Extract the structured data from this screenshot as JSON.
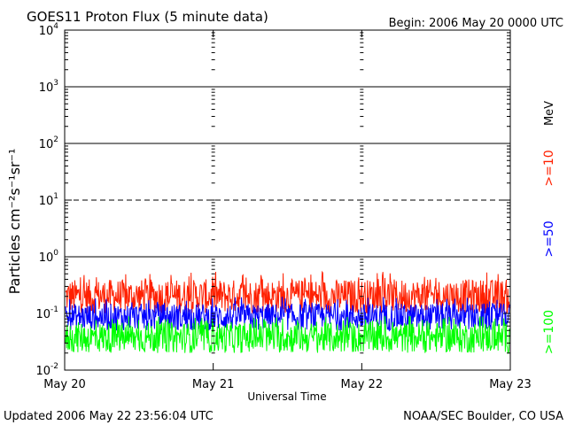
{
  "title": "GOES11 Proton Flux (5 minute data)",
  "begin": "Begin: 2006 May 20 0000 UTC",
  "updated": "Updated 2006 May 22 23:56:04 UTC",
  "credit": "NOAA/SEC Boulder, CO USA",
  "colors": {
    "ge10": "#ff2000",
    "ge50": "#0000ff",
    "ge100": "#00ff00",
    "axis": "#000000",
    "background": "#ffffff"
  },
  "chart_data": {
    "type": "line",
    "title": "GOES11 Proton Flux (5 minute data)",
    "xlabel": "Universal Time",
    "ylabel": "Particles cm⁻²s⁻¹sr⁻¹",
    "yscale": "log",
    "ylim": [
      0.01,
      10000
    ],
    "xlim": [
      "2006-05-20 00:00",
      "2006-05-23 00:00"
    ],
    "x_ticks": [
      "May 20",
      "May 21",
      "May 22",
      "May 23"
    ],
    "y_ticks": [
      {
        "base": "10",
        "exp": "-2"
      },
      {
        "base": "10",
        "exp": "-1"
      },
      {
        "base": "10",
        "exp": "0"
      },
      {
        "base": "10",
        "exp": "1"
      },
      {
        "base": "10",
        "exp": "2"
      },
      {
        "base": "10",
        "exp": "3"
      },
      {
        "base": "10",
        "exp": "4"
      }
    ],
    "reference_lines": [
      {
        "y": 1,
        "style": "solid"
      },
      {
        "y": 10,
        "style": "dashed"
      },
      {
        "y": 100,
        "style": "solid"
      },
      {
        "y": 1000,
        "style": "solid"
      }
    ],
    "units_label": "MeV",
    "series": [
      {
        "name": ">=10",
        "color": "#ff2000",
        "typical_range": [
          0.1,
          0.4
        ],
        "peak": 0.55
      },
      {
        "name": ">=50",
        "color": "#0000ff",
        "typical_range": [
          0.05,
          0.15
        ],
        "peak": 0.2
      },
      {
        "name": ">=100",
        "color": "#00ff00",
        "typical_range": [
          0.02,
          0.07
        ],
        "peak": 0.09
      }
    ],
    "interval_minutes": 5,
    "legend_position": "right"
  }
}
